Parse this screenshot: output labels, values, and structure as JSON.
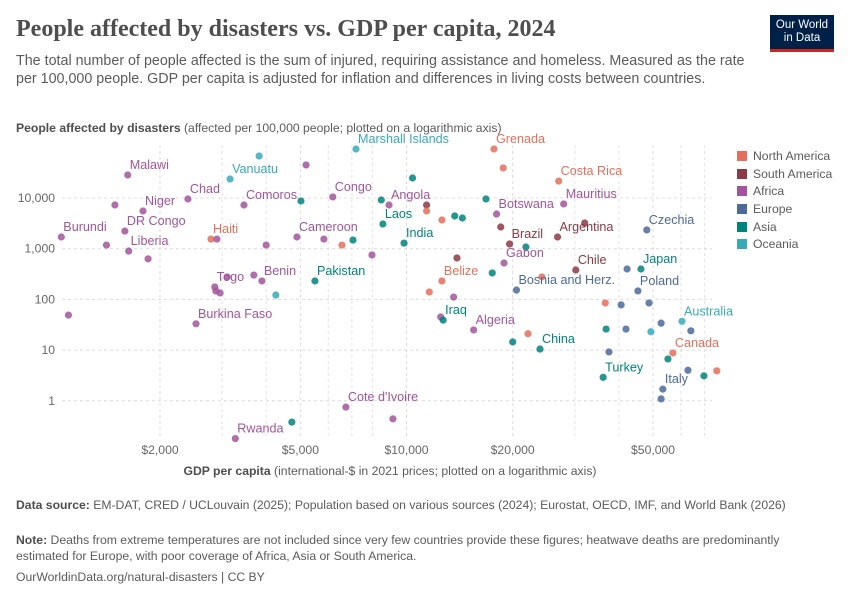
{
  "header": {
    "title": "People affected by disasters vs. GDP per capita, 2024",
    "subtitle": "The total number of people affected is the sum of injured, requiring assistance and homeless. Measured as the rate per 100,000 people. GDP per capita is adjusted for inflation and differences in living costs between countries.",
    "logo_text": [
      "Our World",
      "in Data"
    ]
  },
  "chart_data": {
    "type": "scatter",
    "title": "People affected by disasters vs. GDP per capita, 2024",
    "ylabel_bold": "People affected by disasters",
    "ylabel_rest": " (affected per 100,000 people; plotted on a logarithmic axis)",
    "xlabel_bold": "GDP per capita",
    "xlabel_rest": " (international-$ in 2021 prices; plotted on a logarithmic axis)",
    "x_scale": "log",
    "y_scale": "log",
    "xlim": [
      950,
      78000
    ],
    "ylim": [
      0.17,
      100000
    ],
    "x_ticks": [
      {
        "value": 2000,
        "label": "$2,000"
      },
      {
        "value": 5000,
        "label": "$5,000"
      },
      {
        "value": 10000,
        "label": "$10,000"
      },
      {
        "value": 20000,
        "label": "$20,000"
      },
      {
        "value": 50000,
        "label": "$50,000"
      }
    ],
    "y_ticks": [
      {
        "value": 1,
        "label": "1"
      },
      {
        "value": 10,
        "label": "10"
      },
      {
        "value": 100,
        "label": "100"
      },
      {
        "value": 1000,
        "label": "1,000"
      },
      {
        "value": 10000,
        "label": "10,000"
      }
    ],
    "grid": true,
    "legend_position": "right",
    "legend": [
      {
        "name": "North America",
        "color": "#E56E5A"
      },
      {
        "name": "South America",
        "color": "#8C3A45"
      },
      {
        "name": "Africa",
        "color": "#A2559C"
      },
      {
        "name": "Europe",
        "color": "#4C6A9C"
      },
      {
        "name": "Asia",
        "color": "#00847E"
      },
      {
        "name": "Oceania",
        "color": "#38AABA"
      }
    ],
    "points": [
      {
        "x": 1620,
        "y": 28400,
        "region": "Africa",
        "label": "Malawi"
      },
      {
        "x": 1490,
        "y": 7280,
        "region": "Africa"
      },
      {
        "x": 1790,
        "y": 5540,
        "region": "Africa",
        "label": "Niger"
      },
      {
        "x": 1050,
        "y": 1700,
        "region": "Africa",
        "label": "Burundi"
      },
      {
        "x": 1590,
        "y": 2230,
        "region": "Africa",
        "label": "DR Congo"
      },
      {
        "x": 1410,
        "y": 1180,
        "region": "Africa"
      },
      {
        "x": 1630,
        "y": 900,
        "region": "Africa",
        "label": "Liberia"
      },
      {
        "x": 1850,
        "y": 630,
        "region": "Africa"
      },
      {
        "x": 1100,
        "y": 49,
        "region": "Africa"
      },
      {
        "x": 2400,
        "y": 9550,
        "region": "Africa",
        "label": "Chad"
      },
      {
        "x": 2790,
        "y": 1550,
        "region": "North America",
        "label": "Haiti"
      },
      {
        "x": 2900,
        "y": 1550,
        "region": "Africa"
      },
      {
        "x": 3160,
        "y": 23700,
        "region": "Oceania",
        "label": "Vanuatu"
      },
      {
        "x": 3820,
        "y": 67300,
        "region": "Oceania"
      },
      {
        "x": 5190,
        "y": 44800,
        "region": "Africa"
      },
      {
        "x": 3460,
        "y": 7280,
        "region": "Africa",
        "label": "Comoros"
      },
      {
        "x": 4000,
        "y": 1180,
        "region": "Africa"
      },
      {
        "x": 3100,
        "y": 277,
        "region": "Africa"
      },
      {
        "x": 2860,
        "y": 176,
        "region": "Africa",
        "label": "Togo"
      },
      {
        "x": 2880,
        "y": 147,
        "region": "Africa"
      },
      {
        "x": 2960,
        "y": 134,
        "region": "Africa"
      },
      {
        "x": 3690,
        "y": 302,
        "region": "Africa"
      },
      {
        "x": 3890,
        "y": 231,
        "region": "Africa",
        "label": "Benin"
      },
      {
        "x": 4260,
        "y": 122,
        "region": "Oceania"
      },
      {
        "x": 2530,
        "y": 33,
        "region": "Africa",
        "label": "Burkina Faso"
      },
      {
        "x": 3270,
        "y": 0.18,
        "region": "Africa",
        "label": "Rwanda"
      },
      {
        "x": 4730,
        "y": 0.38,
        "region": "Asia"
      },
      {
        "x": 6730,
        "y": 0.75,
        "region": "Africa",
        "label": "Cote d'Ivoire"
      },
      {
        "x": 9150,
        "y": 0.44,
        "region": "Africa"
      },
      {
        "x": 5020,
        "y": 8730,
        "region": "Asia"
      },
      {
        "x": 4890,
        "y": 1700,
        "region": "Africa",
        "label": "Cameroon"
      },
      {
        "x": 5830,
        "y": 1550,
        "region": "Africa"
      },
      {
        "x": 6560,
        "y": 1180,
        "region": "North America"
      },
      {
        "x": 7050,
        "y": 1480,
        "region": "Asia"
      },
      {
        "x": 7980,
        "y": 752,
        "region": "Africa"
      },
      {
        "x": 5500,
        "y": 231,
        "region": "Asia",
        "label": "Pakistan"
      },
      {
        "x": 6180,
        "y": 10500,
        "region": "Africa",
        "label": "Congo"
      },
      {
        "x": 7190,
        "y": 92500,
        "region": "Oceania",
        "label": "Marshall Islands"
      },
      {
        "x": 10400,
        "y": 24800,
        "region": "Asia"
      },
      {
        "x": 8480,
        "y": 9130,
        "region": "Asia"
      },
      {
        "x": 8920,
        "y": 7280,
        "region": "Africa",
        "label": "Angola"
      },
      {
        "x": 8570,
        "y": 3070,
        "region": "Asia",
        "label": "Laos"
      },
      {
        "x": 9840,
        "y": 1290,
        "region": "Asia",
        "label": "India"
      },
      {
        "x": 11400,
        "y": 7280,
        "region": "South America"
      },
      {
        "x": 11400,
        "y": 5540,
        "region": "North America"
      },
      {
        "x": 11600,
        "y": 140,
        "region": "North America"
      },
      {
        "x": 17700,
        "y": 92500,
        "region": "North America",
        "label": "Grenada"
      },
      {
        "x": 18800,
        "y": 39100,
        "region": "North America"
      },
      {
        "x": 27000,
        "y": 21600,
        "region": "North America",
        "label": "Costa Rica"
      },
      {
        "x": 27900,
        "y": 7630,
        "region": "Africa",
        "label": "Mauritius"
      },
      {
        "x": 16800,
        "y": 9550,
        "region": "Asia"
      },
      {
        "x": 18000,
        "y": 4830,
        "region": "Africa",
        "label": "Botswana"
      },
      {
        "x": 12600,
        "y": 3680,
        "region": "North America"
      },
      {
        "x": 13700,
        "y": 4420,
        "region": "Asia"
      },
      {
        "x": 14400,
        "y": 4030,
        "region": "Asia"
      },
      {
        "x": 18500,
        "y": 2680,
        "region": "South America"
      },
      {
        "x": 32000,
        "y": 3210,
        "region": "South America"
      },
      {
        "x": 26800,
        "y": 1700,
        "region": "South America",
        "label": "Argentina"
      },
      {
        "x": 19600,
        "y": 1240,
        "region": "South America",
        "label": "Brazil"
      },
      {
        "x": 21800,
        "y": 1080,
        "region": "Asia"
      },
      {
        "x": 13900,
        "y": 656,
        "region": "South America"
      },
      {
        "x": 18900,
        "y": 522,
        "region": "Africa",
        "label": "Gabon"
      },
      {
        "x": 17500,
        "y": 332,
        "region": "Asia"
      },
      {
        "x": 30200,
        "y": 380,
        "region": "South America",
        "label": "Chile"
      },
      {
        "x": 12600,
        "y": 231,
        "region": "North America",
        "label": "Belize"
      },
      {
        "x": 24200,
        "y": 277,
        "region": "North America"
      },
      {
        "x": 20500,
        "y": 153,
        "region": "Europe",
        "label": "Bosnia and Herz."
      },
      {
        "x": 13600,
        "y": 111,
        "region": "Africa"
      },
      {
        "x": 48000,
        "y": 2340,
        "region": "Europe",
        "label": "Czechia"
      },
      {
        "x": 42200,
        "y": 398,
        "region": "Europe"
      },
      {
        "x": 46200,
        "y": 398,
        "region": "Asia",
        "label": "Japan"
      },
      {
        "x": 45300,
        "y": 147,
        "region": "Europe",
        "label": "Poland"
      },
      {
        "x": 36600,
        "y": 85,
        "region": "North America"
      },
      {
        "x": 40600,
        "y": 78,
        "region": "Europe"
      },
      {
        "x": 48700,
        "y": 85,
        "region": "Europe"
      },
      {
        "x": 12500,
        "y": 45,
        "region": "Africa"
      },
      {
        "x": 12700,
        "y": 39,
        "region": "Asia",
        "label": "Iraq"
      },
      {
        "x": 15500,
        "y": 25,
        "region": "Africa",
        "label": "Algeria"
      },
      {
        "x": 22100,
        "y": 21,
        "region": "North America"
      },
      {
        "x": 20000,
        "y": 14.5,
        "region": "Asia"
      },
      {
        "x": 23900,
        "y": 10.5,
        "region": "Asia",
        "label": "China"
      },
      {
        "x": 36800,
        "y": 26,
        "region": "Asia"
      },
      {
        "x": 41900,
        "y": 26,
        "region": "Europe"
      },
      {
        "x": 52700,
        "y": 34,
        "region": "Europe"
      },
      {
        "x": 60400,
        "y": 37,
        "region": "Oceania",
        "label": "Australia"
      },
      {
        "x": 49300,
        "y": 23,
        "region": "Oceania"
      },
      {
        "x": 64000,
        "y": 24,
        "region": "Europe"
      },
      {
        "x": 37500,
        "y": 9.2,
        "region": "Europe"
      },
      {
        "x": 56900,
        "y": 8.8,
        "region": "North America",
        "label": "Canada"
      },
      {
        "x": 55100,
        "y": 6.7,
        "region": "Asia"
      },
      {
        "x": 36100,
        "y": 2.9,
        "region": "Asia",
        "label": "Turkey"
      },
      {
        "x": 62800,
        "y": 4.0,
        "region": "Europe"
      },
      {
        "x": 69700,
        "y": 3.1,
        "region": "Asia"
      },
      {
        "x": 75800,
        "y": 3.9,
        "region": "North America"
      },
      {
        "x": 53300,
        "y": 1.7,
        "region": "Europe",
        "label": "Italy"
      },
      {
        "x": 52700,
        "y": 1.09,
        "region": "Europe"
      }
    ]
  },
  "footer": {
    "source_label": "Data source:",
    "source_text": " EM-DAT, CRED / UCLouvain (2025); Population based on various sources (2024); Eurostat, OECD, IMF, and World Bank (2026)",
    "note_label": "Note:",
    "note_text": " Deaths from extreme temperatures are not included since very few countries provide these figures; heatwave deaths are predominantly estimated for Europe, with poor coverage of Africa, Asia or South America.",
    "url": "OurWorldinData.org/natural-disasters | CC BY"
  }
}
